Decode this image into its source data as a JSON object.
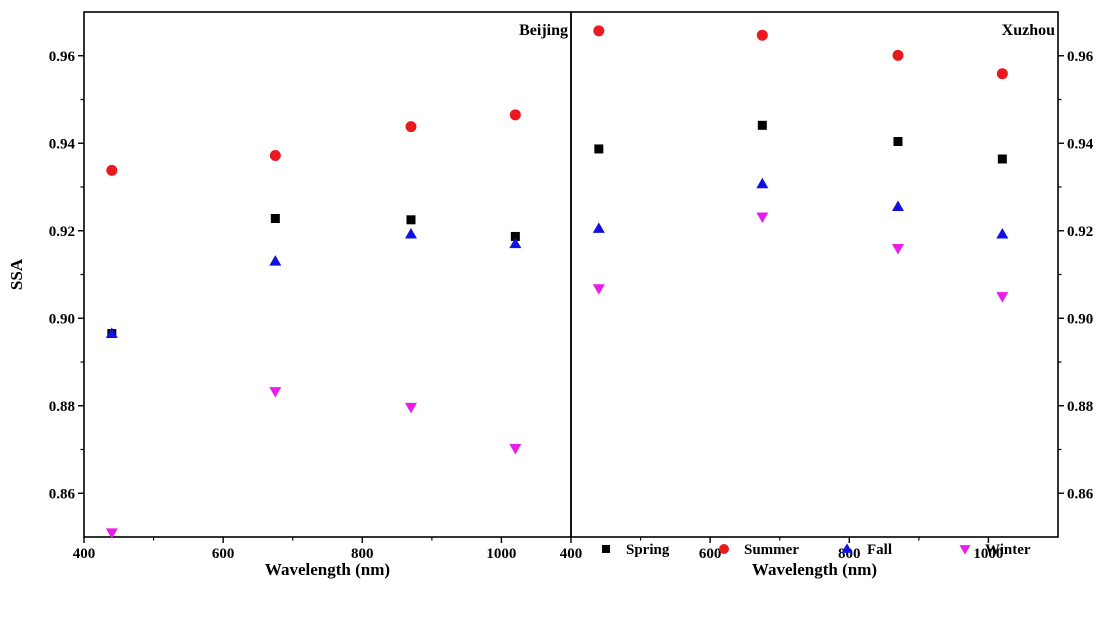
{
  "chart_data": [
    {
      "type": "scatter",
      "title": "Beijing",
      "xlabel": "Wavelength (nm)",
      "ylabel": "SSA",
      "xlim": [
        400,
        1100
      ],
      "ylim": [
        0.85,
        0.97
      ],
      "xticks": [
        "400",
        "600",
        "800",
        "1000"
      ],
      "yticks": [
        "0.86",
        "0.88",
        "0.90",
        "0.92",
        "0.94",
        "0.96"
      ],
      "x": [
        440,
        675,
        870,
        1020
      ],
      "series": [
        {
          "name": "Spring",
          "values": [
            0.8965,
            0.9228,
            0.9225,
            0.9187
          ]
        },
        {
          "name": "Summer",
          "values": [
            0.9338,
            0.9372,
            0.9438,
            0.9465
          ]
        },
        {
          "name": "Fall",
          "values": [
            0.8965,
            0.913,
            0.9192,
            0.917
          ]
        },
        {
          "name": "Winter",
          "values": [
            0.851,
            0.8833,
            0.8797,
            0.8703
          ]
        }
      ]
    },
    {
      "type": "scatter",
      "title": "Xuzhou",
      "xlabel": "Wavelength (nm)",
      "ylabel": "",
      "xlim": [
        400,
        1100
      ],
      "ylim": [
        0.85,
        0.97
      ],
      "xticks": [
        "400",
        "600",
        "800",
        "1000"
      ],
      "yticks": [
        "0.86",
        "0.88",
        "0.90",
        "0.92",
        "0.94",
        "0.96"
      ],
      "x": [
        440,
        675,
        870,
        1020
      ],
      "series": [
        {
          "name": "Spring",
          "values": [
            0.9387,
            0.9441,
            0.9404,
            0.9364
          ]
        },
        {
          "name": "Summer",
          "values": [
            0.9657,
            0.9647,
            0.9601,
            0.9559
          ]
        },
        {
          "name": "Fall",
          "values": [
            0.9205,
            0.9307,
            0.9255,
            0.9192
          ]
        },
        {
          "name": "Winter",
          "values": [
            0.9068,
            0.9232,
            0.916,
            0.905
          ]
        }
      ]
    }
  ],
  "legend": {
    "placement": "bottom-right",
    "items": [
      {
        "label": "Spring",
        "marker": "square",
        "color": "#000000"
      },
      {
        "label": "Summer",
        "marker": "circle",
        "color": "#e8191f"
      },
      {
        "label": "Fall",
        "marker": "triangle-up",
        "color": "#1010e0"
      },
      {
        "label": "Winter",
        "marker": "triangle-down",
        "color": "#ea1cea"
      }
    ]
  }
}
